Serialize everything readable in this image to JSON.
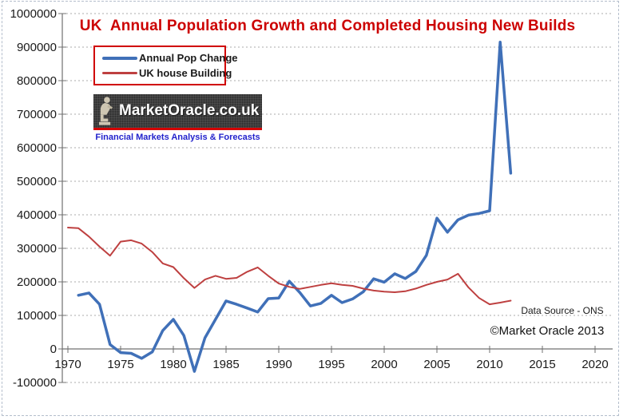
{
  "title": "UK  Annual Population Growth and Completed Housing New Builds",
  "colors": {
    "title_red": "#cc0000",
    "pop_line_blue": "#4070b8",
    "house_line_red": "#be4040",
    "legend_border_red": "#d00000",
    "gridline_gray": "#ababab",
    "axis_gray": "#707070",
    "tick_label": "#1a1a1a",
    "logo_background": "#3f3f3f",
    "logo_stripe_red": "#d40000",
    "logo_text_white": "#ffffff",
    "logo_tagline_blue": "#2222cc",
    "canvas_border": "#b4becc"
  },
  "legend": {
    "items": [
      {
        "label": "Annual Pop Change",
        "color": "#4070b8",
        "thickness": 4
      },
      {
        "label": "UK house Building",
        "color": "#be4040",
        "thickness": 3
      }
    ]
  },
  "logo": {
    "name": "MarketOracle.co.uk",
    "tagline": "Financial Markets Analysis & Forecasts"
  },
  "annotations": {
    "data_source": "Data Source - ONS",
    "copyright": "©Market Oracle 2013"
  },
  "chart_data": {
    "type": "line",
    "title": "UK  Annual Population Growth and Completed Housing New Builds",
    "xlabel": "",
    "ylabel": "",
    "xlim": [
      1970,
      2022
    ],
    "ylim": [
      -100000,
      1000000
    ],
    "x_ticks": [
      1970,
      1975,
      1980,
      1985,
      1990,
      1995,
      2000,
      2005,
      2010,
      2015,
      2020
    ],
    "y_ticks": [
      -100000,
      0,
      100000,
      200000,
      300000,
      400000,
      500000,
      600000,
      700000,
      800000,
      900000,
      1000000
    ],
    "grid": "horizontal-dotted",
    "legend_position": "top-left",
    "series": [
      {
        "name": "Annual Pop Change",
        "color": "#4070b8",
        "stroke_width": 3.5,
        "years": [
          1971,
          1972,
          1973,
          1974,
          1975,
          1976,
          1977,
          1978,
          1979,
          1980,
          1981,
          1982,
          1983,
          1984,
          1985,
          1986,
          1987,
          1988,
          1989,
          1990,
          1991,
          1992,
          1993,
          1994,
          1995,
          1996,
          1997,
          1998,
          1999,
          2000,
          2001,
          2002,
          2003,
          2004,
          2005,
          2006,
          2007,
          2008,
          2009,
          2010,
          2011,
          2012
        ],
        "values": [
          160000,
          167000,
          133000,
          13000,
          -11000,
          -13000,
          -28000,
          -9000,
          55000,
          88000,
          40000,
          -67000,
          33000,
          88000,
          143000,
          133000,
          122000,
          110000,
          150000,
          152000,
          202000,
          168000,
          128000,
          136000,
          160000,
          138000,
          149000,
          170000,
          209000,
          199000,
          224000,
          210000,
          231000,
          279000,
          390000,
          348000,
          385000,
          399000,
          404000,
          412000,
          915000,
          524000
        ]
      },
      {
        "name": "UK house Building",
        "color": "#be4040",
        "stroke_width": 2,
        "years": [
          1970,
          1971,
          1972,
          1973,
          1974,
          1975,
          1976,
          1977,
          1978,
          1979,
          1980,
          1981,
          1982,
          1983,
          1984,
          1985,
          1986,
          1987,
          1988,
          1989,
          1990,
          1991,
          1992,
          1993,
          1994,
          1995,
          1996,
          1997,
          1998,
          1999,
          2000,
          2001,
          2002,
          2003,
          2004,
          2005,
          2006,
          2007,
          2008,
          2009,
          2010,
          2011,
          2012
        ],
        "values": [
          362000,
          360000,
          335000,
          305000,
          278000,
          320000,
          324000,
          314000,
          289000,
          255000,
          244000,
          211000,
          182000,
          207000,
          218000,
          209000,
          212000,
          230000,
          243000,
          218000,
          195000,
          185000,
          179000,
          185000,
          191000,
          196000,
          191000,
          188000,
          180000,
          174000,
          171000,
          169000,
          172000,
          180000,
          191000,
          200000,
          207000,
          224000,
          183000,
          152000,
          133000,
          138000,
          144000
        ]
      }
    ]
  }
}
